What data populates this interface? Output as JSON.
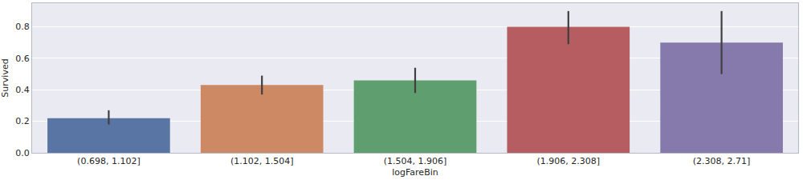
{
  "chart_data": {
    "type": "bar",
    "x_label": "logFareBin",
    "y_label": "Survived",
    "categories": [
      "(0.698, 1.102]",
      "(1.102, 1.504]",
      "(1.504, 1.906]",
      "(1.906, 2.308]",
      "(2.308, 2.71]"
    ],
    "values": [
      0.22,
      0.43,
      0.46,
      0.8,
      0.7
    ],
    "error_low": [
      0.18,
      0.37,
      0.38,
      0.69,
      0.5
    ],
    "error_high": [
      0.27,
      0.49,
      0.54,
      0.9,
      0.9
    ],
    "colors": [
      "#5975a4",
      "#cc8963",
      "#5f9e6e",
      "#b55d60",
      "#857aab"
    ],
    "ylim": [
      0,
      0.95
    ],
    "yticks": [
      {
        "value": 0,
        "label": "0.0"
      },
      {
        "value": 0.2,
        "label": "0.2"
      },
      {
        "value": 0.4,
        "label": "0.4"
      },
      {
        "value": 0.6,
        "label": "0.6"
      },
      {
        "value": 0.8,
        "label": "0.8"
      }
    ],
    "grid": true
  }
}
